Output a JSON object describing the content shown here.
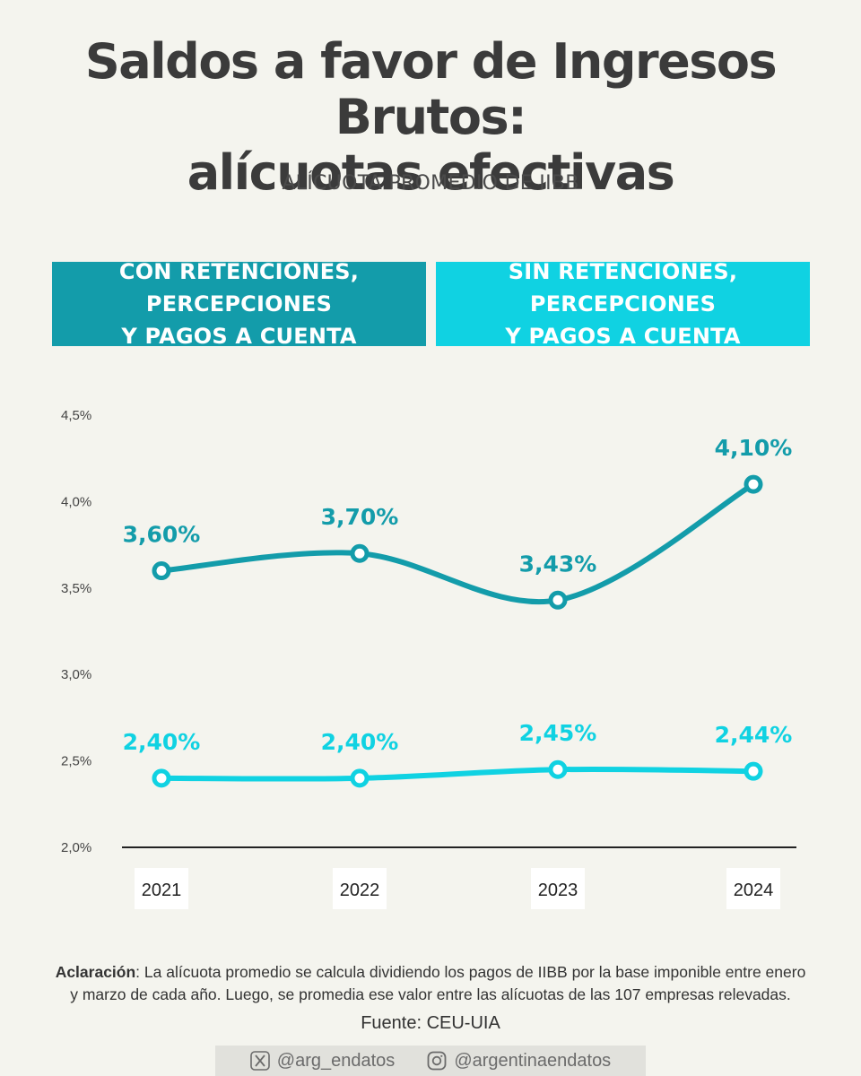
{
  "header": {
    "title_line1": "Saldos a favor de Ingresos Brutos:",
    "title_line2": "alícuotas efectivas",
    "subtitle": "ALÍCUOTA PROMEDIO DE IIBB"
  },
  "legend": {
    "con_line1": "CON RETENCIONES, PERCEPCIONES",
    "con_line2": "Y PAGOS A CUENTA",
    "sin_line1": "SIN RETENCIONES, PERCEPCIONES",
    "sin_line2": "Y PAGOS A CUENTA"
  },
  "colors": {
    "con": "#139caa",
    "sin": "#10d2e2",
    "axis": "#222222",
    "background": "#f4f4ee"
  },
  "chart_data": {
    "type": "line",
    "title": "ALÍCUOTA PROMEDIO DE IIBB",
    "xlabel": "",
    "ylabel": "",
    "categories": [
      "2021",
      "2022",
      "2023",
      "2024"
    ],
    "ylim": [
      2.0,
      4.5
    ],
    "yticks": [
      2.0,
      2.5,
      3.0,
      3.5,
      4.0,
      4.5
    ],
    "ytick_labels": [
      "2,0%",
      "2,5%",
      "3,0%",
      "3,5%",
      "4,0%",
      "4,5%"
    ],
    "grid": false,
    "series": [
      {
        "name": "CON RETENCIONES, PERCEPCIONES Y PAGOS A CUENTA",
        "values": [
          3.6,
          3.7,
          3.43,
          4.1
        ],
        "labels": [
          "3,60%",
          "3,70%",
          "3,43%",
          "4,10%"
        ],
        "color_key": "con"
      },
      {
        "name": "SIN RETENCIONES, PERCEPCIONES Y PAGOS A CUENTA",
        "values": [
          2.4,
          2.4,
          2.45,
          2.44
        ],
        "labels": [
          "2,40%",
          "2,40%",
          "2,45%",
          "2,44%"
        ],
        "color_key": "sin"
      }
    ]
  },
  "note": {
    "label": "Aclaración",
    "text_line1": ": La alícuota promedio se calcula dividiendo los pagos de IIBB por la base imponible entre enero",
    "text_line2": "y marzo de cada año. Luego, se promedia ese valor entre las alícuotas de las 107 empresas relevadas."
  },
  "source": "Fuente: CEU-UIA",
  "footer": {
    "x_icon": "x-twitter-icon",
    "x_handle": "@arg_endatos",
    "ig_icon": "instagram-icon",
    "ig_handle": "@argentinaendatos"
  }
}
